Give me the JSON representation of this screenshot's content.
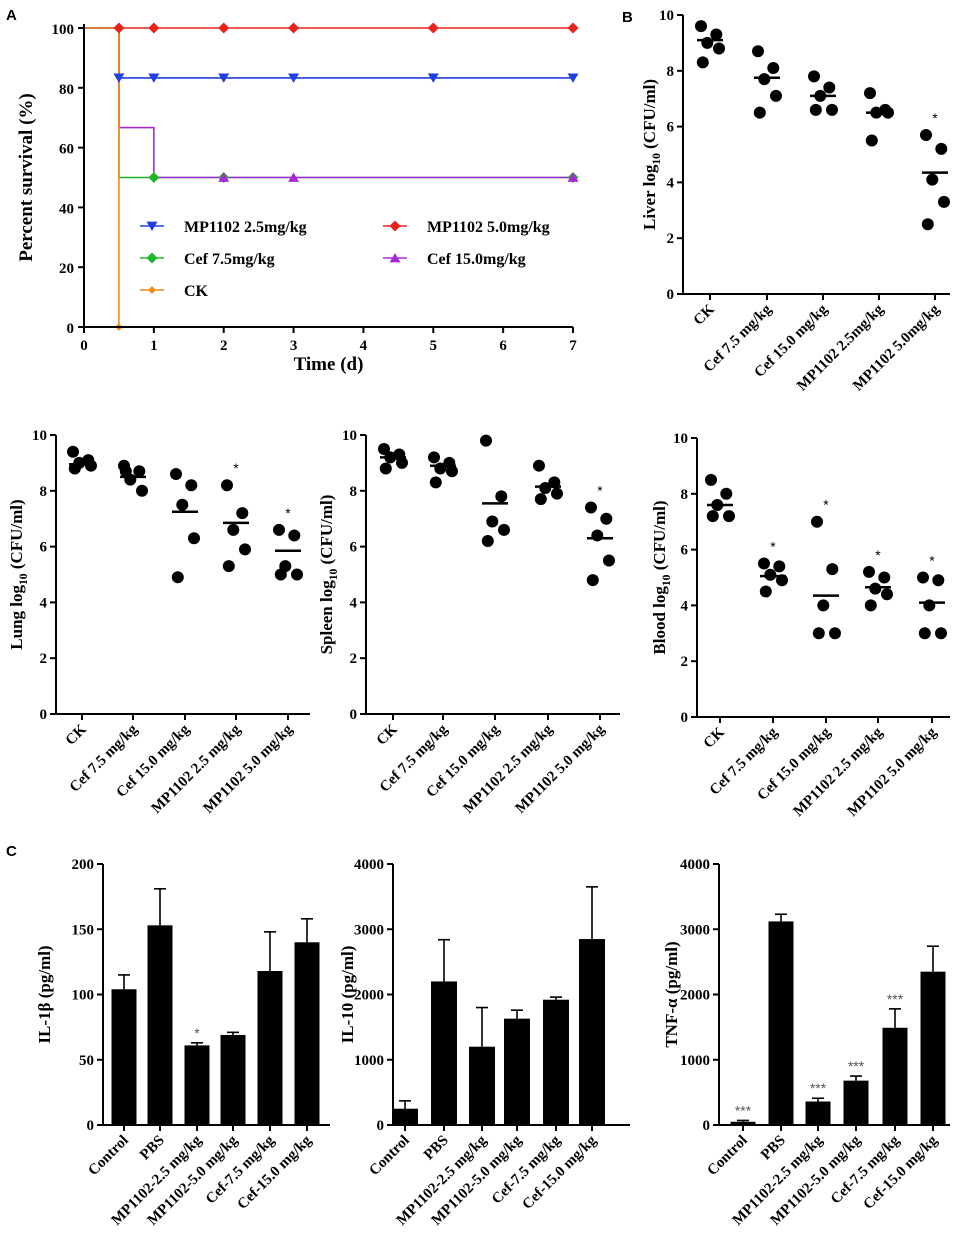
{
  "panel_letters": {
    "a": "A",
    "b": "B",
    "c": "C"
  },
  "chart_data": [
    {
      "id": "survival",
      "type": "line",
      "title": "",
      "xlabel": "Time (d)",
      "ylabel": "Percent survival (%)",
      "xlim": [
        0,
        7
      ],
      "ylim": [
        0,
        100
      ],
      "xticks": [
        0,
        1,
        2,
        3,
        4,
        5,
        6,
        7
      ],
      "yticks": [
        0,
        20,
        40,
        60,
        80,
        100
      ],
      "series": [
        {
          "name": "MP1102 2.5mg/kg",
          "color": "#1f3fe0",
          "marker": "triangle-down",
          "steps": [
            [
              0,
              100
            ],
            [
              0.5,
              100
            ],
            [
              0.5,
              83.3
            ],
            [
              7,
              83.3
            ]
          ],
          "markers": [
            [
              0.5,
              83.3
            ],
            [
              1,
              83.3
            ],
            [
              2,
              83.3
            ],
            [
              3,
              83.3
            ],
            [
              5,
              83.3
            ],
            [
              7,
              83.3
            ]
          ]
        },
        {
          "name": "MP1102 5.0mg/kg",
          "color": "#e8231d",
          "marker": "diamond",
          "steps": [
            [
              0,
              100
            ],
            [
              7,
              100
            ]
          ],
          "markers": [
            [
              0.5,
              100
            ],
            [
              1,
              100
            ],
            [
              2,
              100
            ],
            [
              3,
              100
            ],
            [
              5,
              100
            ],
            [
              7,
              100
            ]
          ]
        },
        {
          "name": "Cef 7.5mg/kg",
          "color": "#22b52a",
          "marker": "diamond",
          "steps": [
            [
              0,
              100
            ],
            [
              0.5,
              100
            ],
            [
              0.5,
              50
            ],
            [
              7,
              50
            ]
          ],
          "markers": [
            [
              1,
              50
            ],
            [
              2,
              50
            ],
            [
              7,
              50
            ]
          ]
        },
        {
          "name": "Cef 15.0mg/kg",
          "color": "#a52bd6",
          "marker": "triangle-up",
          "steps": [
            [
              0,
              100
            ],
            [
              0.5,
              100
            ],
            [
              0.5,
              66.7
            ],
            [
              1,
              66.7
            ],
            [
              1,
              50
            ],
            [
              7,
              50
            ]
          ],
          "markers": [
            [
              2,
              50
            ],
            [
              3,
              50
            ],
            [
              7,
              50
            ]
          ]
        },
        {
          "name": "CK",
          "color": "#f28a1c",
          "marker": "diamond-small",
          "steps": [
            [
              0,
              100
            ],
            [
              0.5,
              100
            ],
            [
              0.5,
              0
            ]
          ],
          "markers": [
            [
              0.5,
              0
            ]
          ]
        }
      ],
      "legend_position": "center"
    },
    {
      "id": "liver",
      "type": "scatter",
      "ylabel": "Liver log10 (CFU/ml)",
      "ylabel_main": "Liver log",
      "ylabel_sub": "10",
      "ylabel_unit": " (CFU/ml)",
      "ylim": [
        0,
        10
      ],
      "yticks": [
        0,
        2,
        4,
        6,
        8,
        10
      ],
      "categories": [
        "CK",
        "Cef 7.5 mg/kg",
        "Cef 15.0 mg/kg",
        "MP1102 2.5mg/kg",
        "MP1102 5.0mg/kg"
      ],
      "points": [
        [
          9.6,
          9.3,
          9.0,
          8.8,
          8.3
        ],
        [
          8.7,
          8.1,
          7.7,
          7.1,
          6.5
        ],
        [
          7.8,
          7.4,
          7.1,
          6.6,
          6.6
        ],
        [
          7.2,
          6.6,
          6.5,
          6.5,
          5.5
        ],
        [
          5.7,
          5.2,
          4.1,
          3.3,
          2.5
        ]
      ],
      "means": [
        9.1,
        7.75,
        7.1,
        6.5,
        4.35
      ],
      "significance": [
        "",
        "",
        "",
        "",
        "*"
      ]
    },
    {
      "id": "lung",
      "type": "scatter",
      "ylabel": "Lung log10 (CFU/ml)",
      "ylabel_main": "Lung log",
      "ylabel_sub": "10",
      "ylabel_unit": " (CFU/ml)",
      "ylim": [
        0,
        10
      ],
      "yticks": [
        0,
        2,
        4,
        6,
        8,
        10
      ],
      "categories": [
        "CK",
        "Cef 7.5 mg/kg",
        "Cef 15.0 mg/kg",
        "MP1102 2.5 mg/kg",
        "MP1102 5.0 mg/kg"
      ],
      "points": [
        [
          9.4,
          9.1,
          9.0,
          8.9,
          8.8
        ],
        [
          8.9,
          8.7,
          8.4,
          8.0,
          8.7
        ],
        [
          8.6,
          8.2,
          7.5,
          6.3,
          4.9
        ],
        [
          8.2,
          7.2,
          6.6,
          5.9,
          5.3
        ],
        [
          6.6,
          6.4,
          5.3,
          5.0,
          5.0
        ]
      ],
      "means": [
        8.95,
        8.5,
        7.25,
        6.85,
        5.85
      ],
      "significance": [
        "",
        "",
        "",
        "*",
        "*"
      ]
    },
    {
      "id": "spleen",
      "type": "scatter",
      "ylabel": "Spleen log10 (CFU/ml)",
      "ylabel_main": "Spleen log",
      "ylabel_sub": "10",
      "ylabel_unit": " (CFU/ml)",
      "ylim": [
        0,
        10
      ],
      "yticks": [
        0,
        2,
        4,
        6,
        8,
        10
      ],
      "categories": [
        "CK",
        "Cef 7.5 mg/kg",
        "Cef 15.0 mg/kg",
        "MP1102 2.5 mg/kg",
        "MP1102 5.0 mg/kg"
      ],
      "points": [
        [
          9.5,
          9.3,
          9.2,
          9.0,
          8.8
        ],
        [
          9.2,
          9.0,
          8.8,
          8.7,
          8.3
        ],
        [
          9.8,
          7.8,
          6.9,
          6.6,
          6.2
        ],
        [
          8.9,
          8.3,
          8.1,
          7.9,
          7.7
        ],
        [
          7.4,
          7.0,
          6.4,
          5.5,
          4.8
        ]
      ],
      "means": [
        9.2,
        8.9,
        7.55,
        8.15,
        6.3
      ],
      "significance": [
        "",
        "",
        "",
        "",
        "*"
      ]
    },
    {
      "id": "blood",
      "type": "scatter",
      "ylabel": "Blood log10 (CFU/ml)",
      "ylabel_main": "Blood log",
      "ylabel_sub": "10",
      "ylabel_unit": " (CFU/ml)",
      "ylim": [
        0,
        10
      ],
      "yticks": [
        0,
        2,
        4,
        6,
        8,
        10
      ],
      "categories": [
        "CK",
        "Cef 7.5 mg/kg",
        "Cef 15.0 mg/kg",
        "MP1102 2.5 mg/kg",
        "MP1102 5.0 mg/kg"
      ],
      "points": [
        [
          8.5,
          8.0,
          7.6,
          7.2,
          7.2
        ],
        [
          5.5,
          5.4,
          5.1,
          4.9,
          4.5
        ],
        [
          7.0,
          5.3,
          4.0,
          3.0,
          3.0
        ],
        [
          5.2,
          5.0,
          4.6,
          4.4,
          4.0
        ],
        [
          5.0,
          4.9,
          4.0,
          3.0,
          3.0
        ]
      ],
      "means": [
        7.6,
        5.05,
        4.35,
        4.65,
        4.1
      ],
      "significance": [
        "",
        "*",
        "*",
        "*",
        "*"
      ]
    },
    {
      "id": "il1b",
      "type": "bar",
      "ylabel": "IL-1β (pg/ml)",
      "ylim": [
        0,
        200
      ],
      "yticks": [
        0,
        50,
        100,
        150,
        200
      ],
      "categories": [
        "Control",
        "PBS",
        "MP1102-2.5 mg/kg",
        "MP1102-5.0 mg/kg",
        "Cef-7.5 mg/kg",
        "Cef-15.0 mg/kg"
      ],
      "values": [
        104,
        153,
        61,
        69,
        118,
        140
      ],
      "errors": [
        11,
        28,
        2,
        2,
        30,
        18
      ],
      "significance": [
        "",
        "",
        "*",
        "",
        "",
        ""
      ]
    },
    {
      "id": "il10",
      "type": "bar",
      "ylabel": "IL-10 (pg/ml)",
      "ylim": [
        0,
        4000
      ],
      "yticks": [
        0,
        1000,
        2000,
        3000,
        4000
      ],
      "categories": [
        "Control",
        "PBS",
        "MP1102-2.5 mg/kg",
        "MP1102-5.0 mg/kg",
        "Cef-7.5 mg/kg",
        "Cef-15.0 mg/kg"
      ],
      "values": [
        250,
        2200,
        1200,
        1630,
        1920,
        2850
      ],
      "errors": [
        120,
        640,
        600,
        130,
        40,
        800
      ],
      "significance": [
        "",
        "",
        "",
        "",
        "",
        ""
      ]
    },
    {
      "id": "tnfa",
      "type": "bar",
      "ylabel": "TNF-α (pg/ml)",
      "ylim": [
        0,
        4000
      ],
      "yticks": [
        0,
        1000,
        2000,
        3000,
        4000
      ],
      "categories": [
        "Control",
        "PBS",
        "MP1102-2.5 mg/kg",
        "MP1102-5.0 mg/kg",
        "Cef-7.5 mg/kg",
        "Cef-15.0 mg/kg"
      ],
      "values": [
        50,
        3120,
        360,
        680,
        1490,
        2350
      ],
      "errors": [
        20,
        110,
        50,
        70,
        290,
        390
      ],
      "significance": [
        "***",
        "",
        "***",
        "***",
        "***",
        ""
      ]
    }
  ]
}
